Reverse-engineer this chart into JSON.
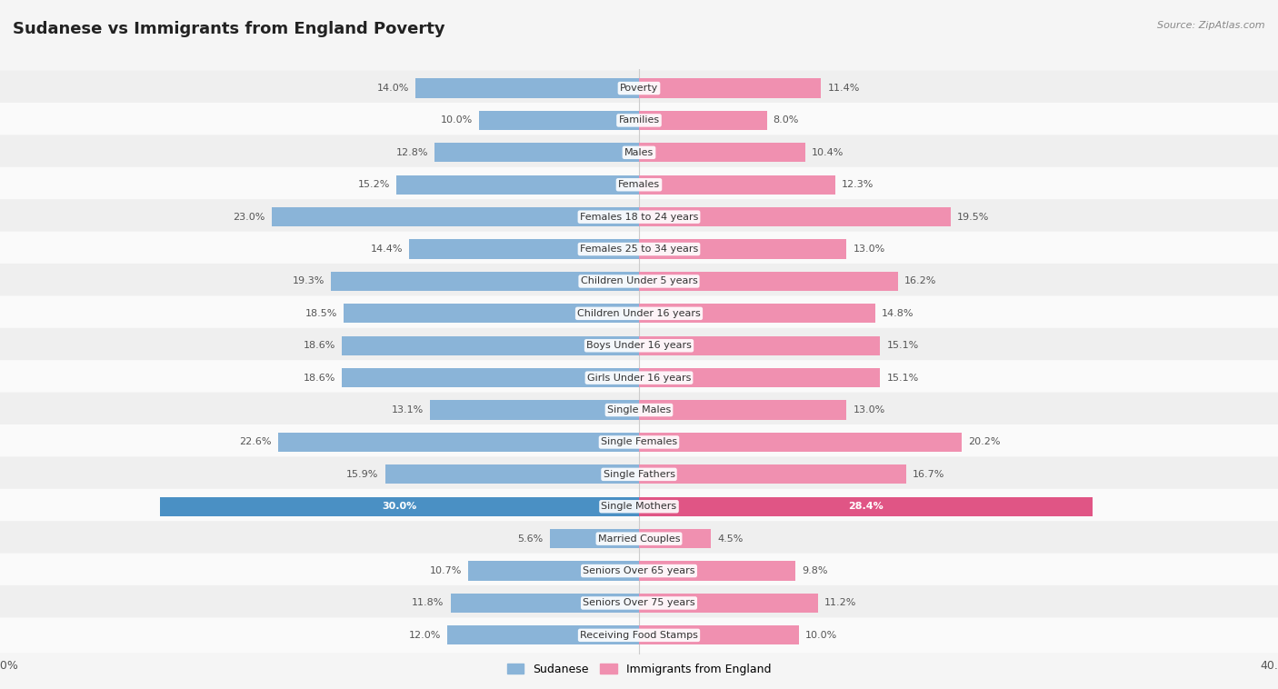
{
  "title": "Sudanese vs Immigrants from England Poverty",
  "source": "Source: ZipAtlas.com",
  "categories": [
    "Poverty",
    "Families",
    "Males",
    "Females",
    "Females 18 to 24 years",
    "Females 25 to 34 years",
    "Children Under 5 years",
    "Children Under 16 years",
    "Boys Under 16 years",
    "Girls Under 16 years",
    "Single Males",
    "Single Females",
    "Single Fathers",
    "Single Mothers",
    "Married Couples",
    "Seniors Over 65 years",
    "Seniors Over 75 years",
    "Receiving Food Stamps"
  ],
  "sudanese": [
    14.0,
    10.0,
    12.8,
    15.2,
    23.0,
    14.4,
    19.3,
    18.5,
    18.6,
    18.6,
    13.1,
    22.6,
    15.9,
    30.0,
    5.6,
    10.7,
    11.8,
    12.0
  ],
  "england": [
    11.4,
    8.0,
    10.4,
    12.3,
    19.5,
    13.0,
    16.2,
    14.8,
    15.1,
    15.1,
    13.0,
    20.2,
    16.7,
    28.4,
    4.5,
    9.8,
    11.2,
    10.0
  ],
  "sudanese_color": "#8ab4d8",
  "england_color": "#f090b0",
  "sudanese_label": "Sudanese",
  "england_label": "Immigrants from England",
  "axis_max": 40.0,
  "highlight_row": 13,
  "highlight_sudanese_color": "#4a90c4",
  "highlight_england_color": "#e05585",
  "row_colors": [
    "#efefef",
    "#fafafa"
  ],
  "bg_color": "#f5f5f5",
  "label_color": "#555555",
  "title_color": "#222222",
  "source_color": "#888888",
  "center_label_bg": "#ffffff"
}
